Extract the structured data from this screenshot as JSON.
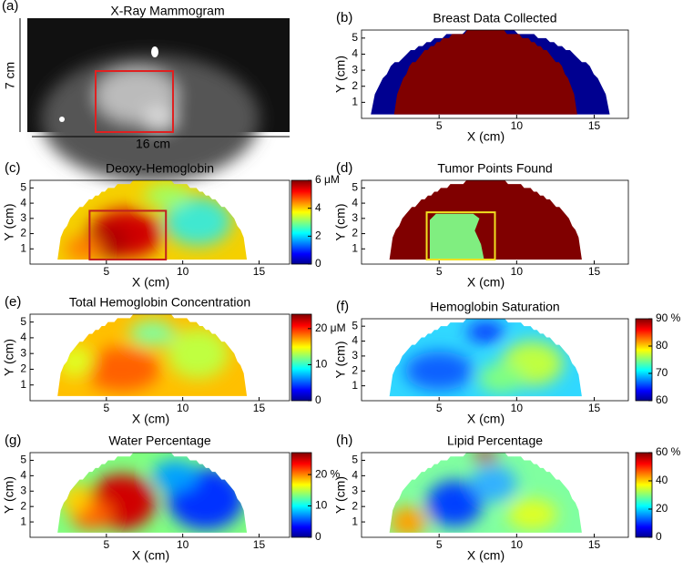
{
  "chart_data": [
    {
      "type": "image",
      "label": "(a)",
      "title": "X-Ray Mammogram",
      "height_label": "7 cm",
      "width_label": "16 cm"
    },
    {
      "type": "mask",
      "label": "(b)",
      "title": "Breast Data Collected",
      "xlabel": "X (cm)",
      "ylabel": "Y (cm)",
      "xlim": [
        0,
        17.2
      ],
      "ylim": [
        0,
        5.5
      ],
      "xticks": [
        5,
        10,
        15
      ],
      "yticks": [
        1,
        2,
        3,
        4,
        5
      ]
    },
    {
      "type": "heatmap",
      "label": "(c)",
      "title": "Deoxy-Hemoglobin",
      "xlabel": "X (cm)",
      "ylabel": "Y (cm)",
      "xlim": [
        0,
        17
      ],
      "ylim": [
        0,
        5.5
      ],
      "xticks": [
        5,
        10,
        15
      ],
      "yticks": [
        1,
        2,
        3,
        4,
        5
      ],
      "clim": [
        0,
        6
      ],
      "cticks": [
        0,
        2,
        4,
        {
          "value": 6,
          "label": "6 μM"
        }
      ]
    },
    {
      "type": "mask",
      "label": "(d)",
      "title": "Tumor Points Found",
      "xlabel": "X (cm)",
      "ylabel": "Y (cm)",
      "xlim": [
        0,
        17.2
      ],
      "ylim": [
        0,
        5.5
      ],
      "xticks": [
        5,
        10,
        15
      ],
      "yticks": [
        1,
        2,
        3,
        4,
        5
      ]
    },
    {
      "type": "heatmap",
      "label": "(e)",
      "title": "Total Hemoglobin Concentration",
      "xlabel": "X (cm)",
      "ylabel": "Y (cm)",
      "xlim": [
        0,
        17
      ],
      "ylim": [
        0,
        5.5
      ],
      "xticks": [
        5,
        10,
        15
      ],
      "yticks": [
        1,
        2,
        3,
        4,
        5
      ],
      "clim": [
        0,
        24
      ],
      "cticks": [
        0,
        10,
        {
          "value": 20,
          "label": "20 μM"
        }
      ]
    },
    {
      "type": "heatmap",
      "label": "(f)",
      "title": "Hemoglobin Saturation",
      "xlabel": "X (cm)",
      "ylabel": "Y (cm)",
      "xlim": [
        0,
        17.2
      ],
      "ylim": [
        0,
        5.5
      ],
      "xticks": [
        5,
        10,
        15
      ],
      "yticks": [
        1,
        2,
        3,
        4,
        5
      ],
      "clim": [
        60,
        90
      ],
      "cticks": [
        60,
        70,
        80,
        {
          "value": 90,
          "label": "90 %"
        }
      ]
    },
    {
      "type": "heatmap",
      "label": "(g)",
      "title": "Water Percentage",
      "xlabel": "X (cm)",
      "ylabel": "Y (cm)",
      "xlim": [
        0,
        17
      ],
      "ylim": [
        0,
        5.5
      ],
      "xticks": [
        5,
        10,
        15
      ],
      "yticks": [
        1,
        2,
        3,
        4,
        5
      ],
      "clim": [
        0,
        27
      ],
      "cticks": [
        0,
        10,
        {
          "value": 20,
          "label": "20 %"
        }
      ]
    },
    {
      "type": "heatmap",
      "label": "(h)",
      "title": "Lipid Percentage",
      "xlabel": "X (cm)",
      "ylabel": "Y (cm)",
      "xlim": [
        0,
        17.2
      ],
      "ylim": [
        0,
        5.5
      ],
      "xticks": [
        5,
        10,
        15
      ],
      "yticks": [
        1,
        2,
        3,
        4,
        5
      ],
      "clim": [
        0,
        60
      ],
      "cticks": [
        0,
        20,
        40,
        {
          "value": 60,
          "label": "60 %"
        }
      ]
    }
  ]
}
